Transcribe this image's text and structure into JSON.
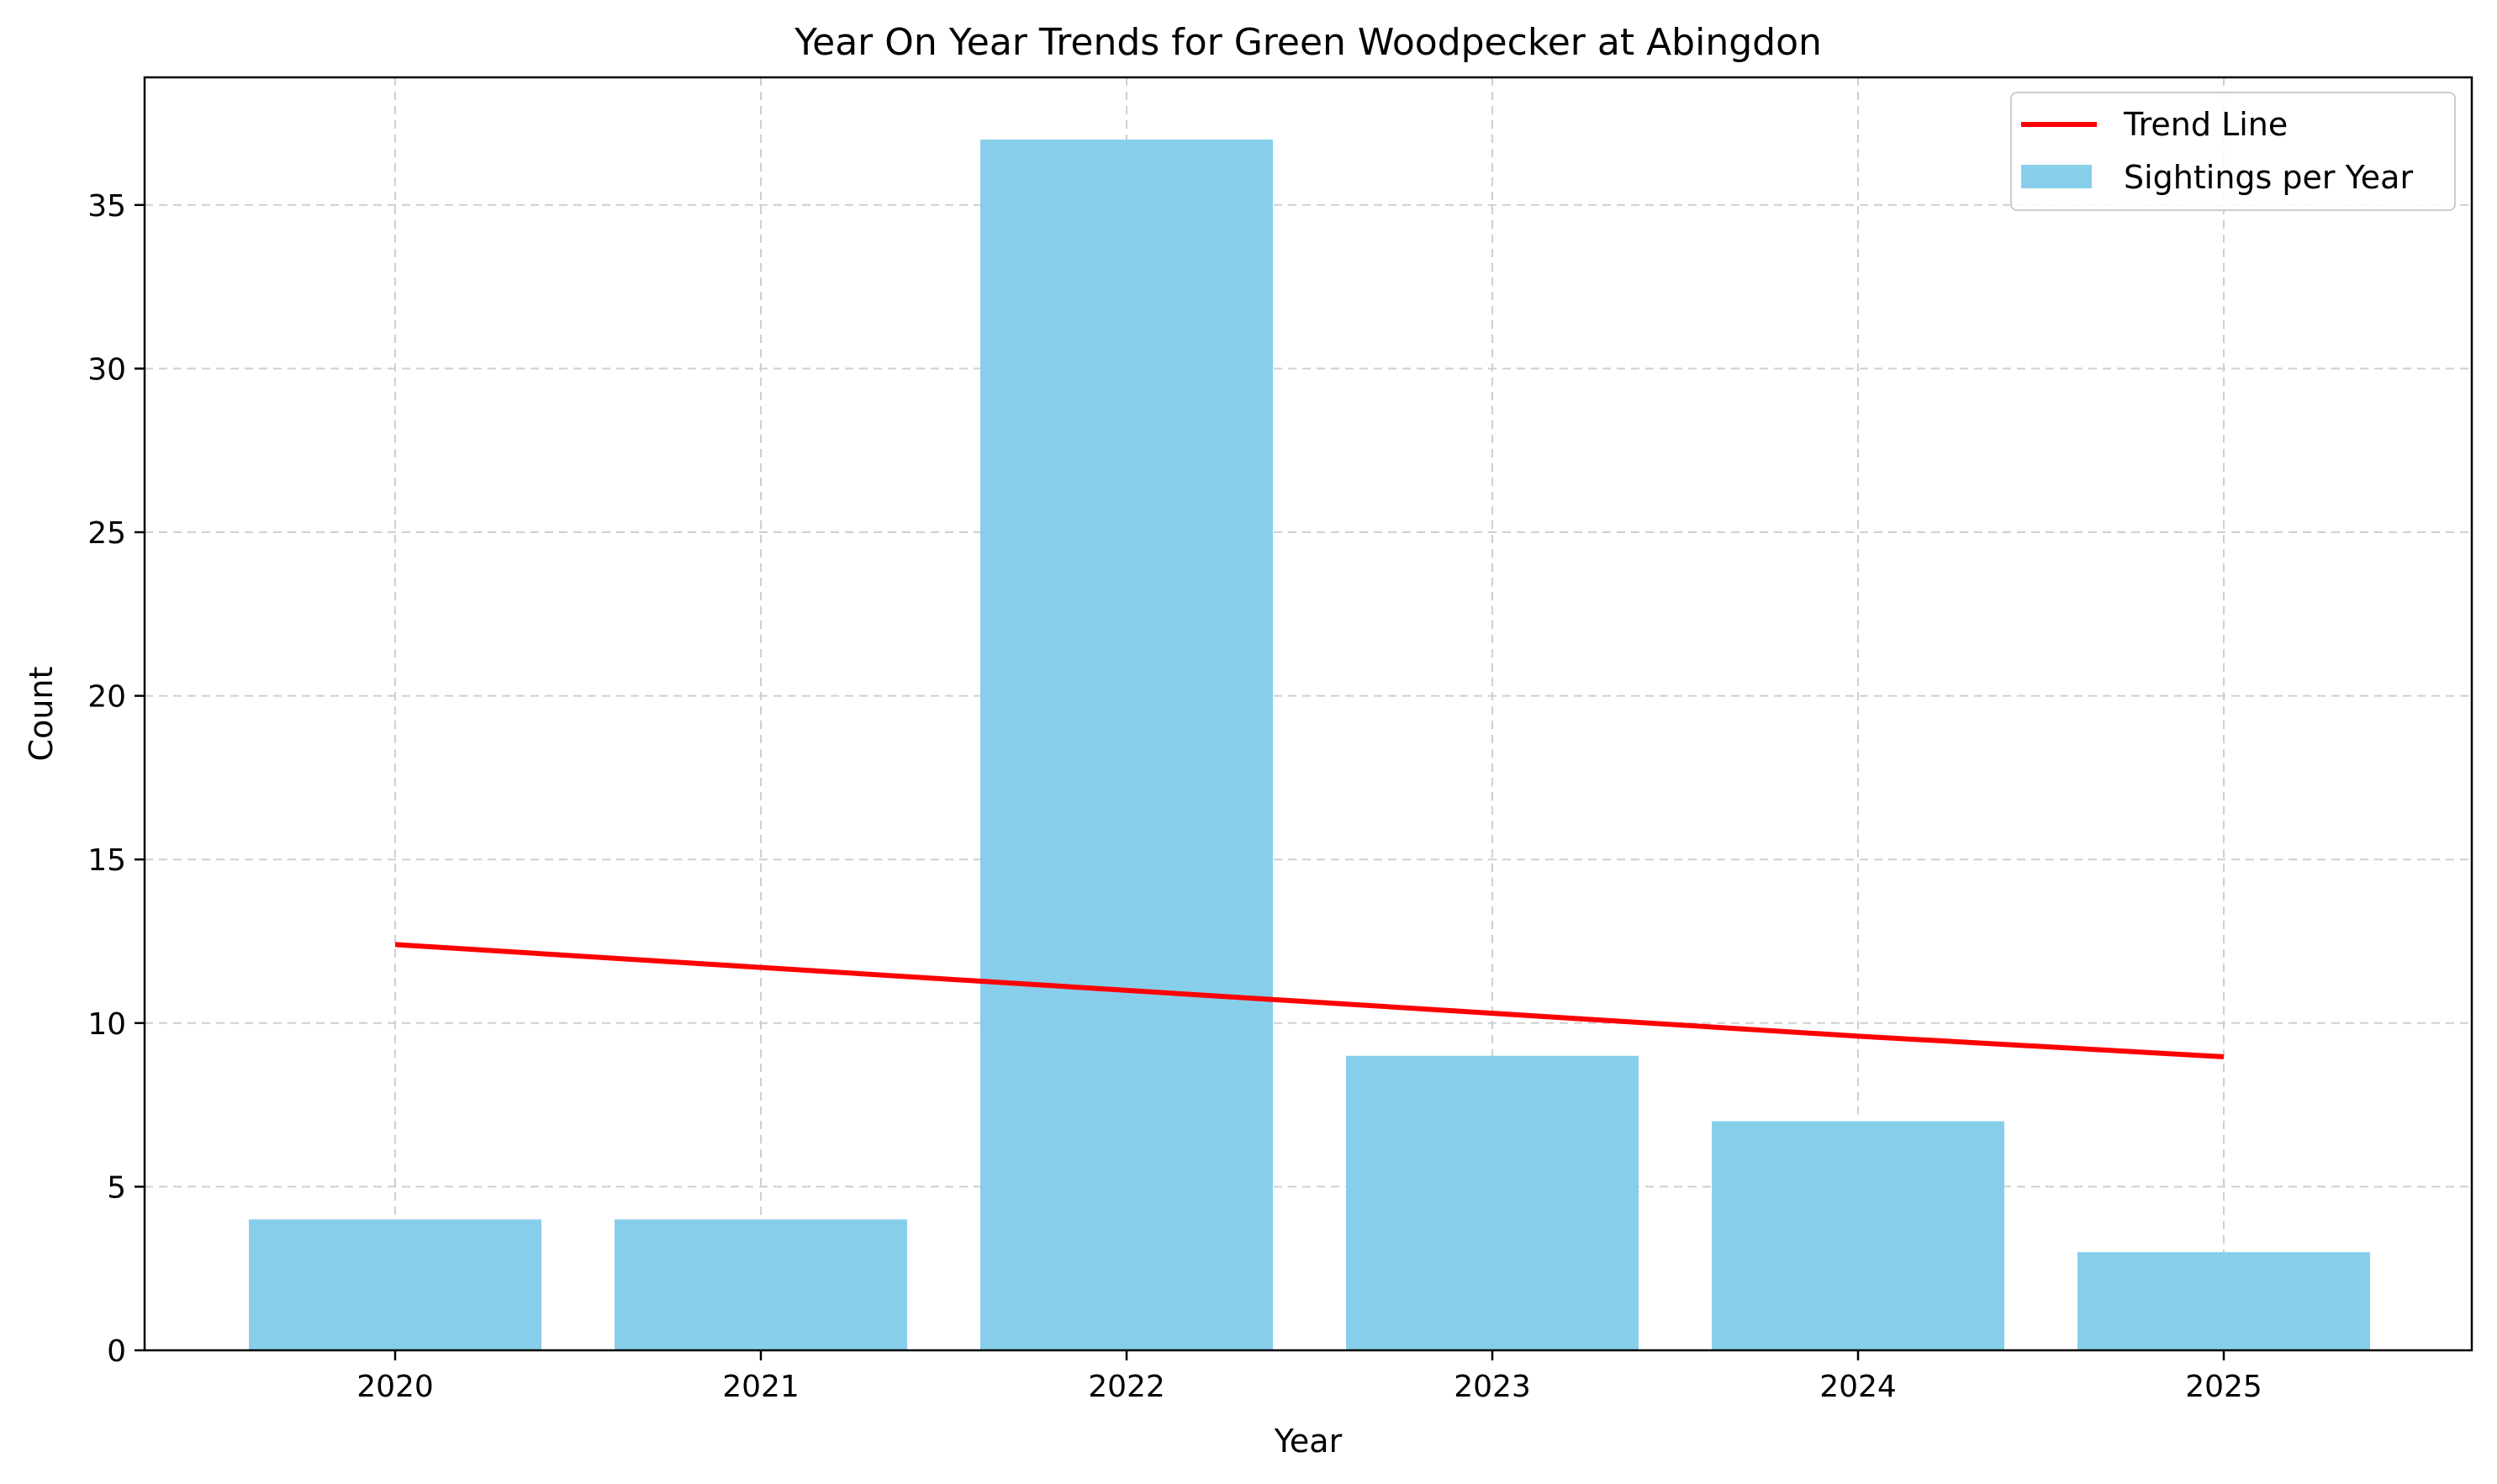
{
  "chart_data": {
    "type": "bar",
    "title": "Year On Year Trends for Green Woodpecker at Abingdon",
    "xlabel": "Year",
    "ylabel": "Count",
    "categories": [
      "2020",
      "2021",
      "2022",
      "2023",
      "2024",
      "2025"
    ],
    "series": [
      {
        "name": "Sightings per Year",
        "type": "bar",
        "values": [
          4,
          4,
          37,
          9,
          7,
          3
        ],
        "color": "#87CEEB"
      },
      {
        "name": "Trend Line",
        "type": "line",
        "values": [
          12.4,
          11.7,
          11.0,
          10.3,
          9.6,
          8.97
        ],
        "color": "#FF0000"
      }
    ],
    "ylim": [
      0,
      38.9
    ],
    "yticks": [
      0,
      5,
      10,
      15,
      20,
      25,
      30,
      35
    ],
    "grid": true,
    "legend_position": "top-right"
  }
}
